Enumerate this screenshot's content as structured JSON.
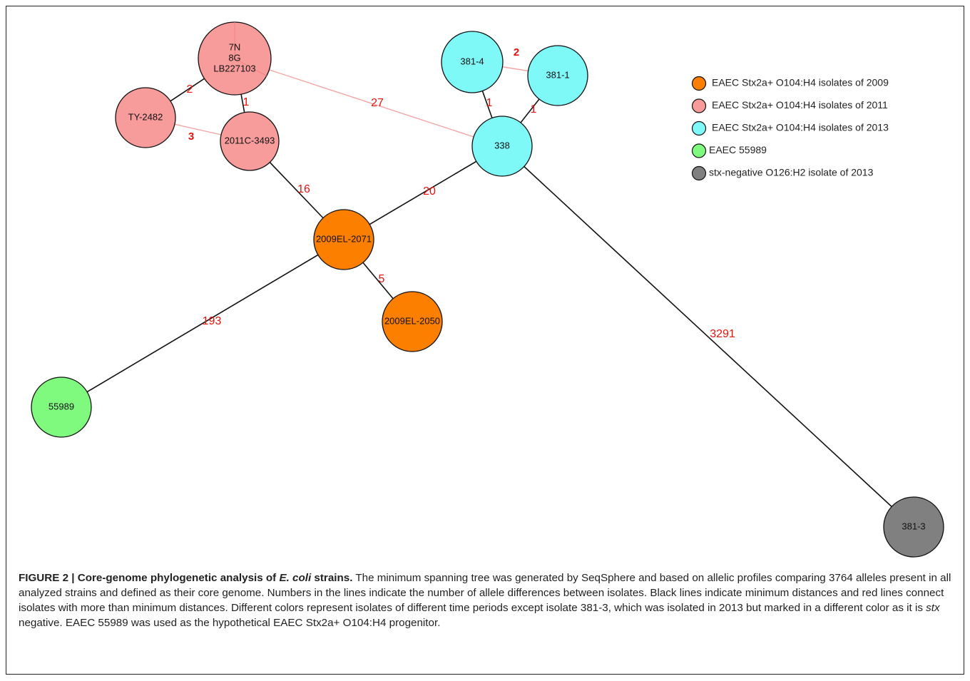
{
  "colors": {
    "y2009": "#fd7f00",
    "y2011": "#f89b9b",
    "y2013": "#7ff8f8",
    "strain55989": "#80f97f",
    "stxneg": "#808080",
    "edge_min": "#111111",
    "edge_other": "#f4a4a4",
    "edge_label": "#e8120c"
  },
  "nodes": [
    {
      "id": "lb227103",
      "lines": [
        "7N",
        "8G",
        "LB227103"
      ],
      "group": "y2011"
    },
    {
      "id": "ty2482",
      "lines": [
        "TY-2482"
      ],
      "group": "y2011"
    },
    {
      "id": "2011c3493",
      "lines": [
        "2011C-3493"
      ],
      "group": "y2011"
    },
    {
      "id": "381_4",
      "lines": [
        "381-4"
      ],
      "group": "y2013"
    },
    {
      "id": "381_1",
      "lines": [
        "381-1"
      ],
      "group": "y2013"
    },
    {
      "id": "338",
      "lines": [
        "338"
      ],
      "group": "y2013"
    },
    {
      "id": "2009el2071",
      "lines": [
        "2009EL-2071"
      ],
      "group": "y2009"
    },
    {
      "id": "2009el2050",
      "lines": [
        "2009EL-2050"
      ],
      "group": "y2009"
    },
    {
      "id": "55989",
      "lines": [
        "55989"
      ],
      "group": "strain55989"
    },
    {
      "id": "381_3",
      "lines": [
        "381-3"
      ],
      "group": "stxneg"
    }
  ],
  "edges": [
    {
      "from": "lb227103",
      "to": "ty2482",
      "label": "2",
      "type": "min",
      "bold": false
    },
    {
      "from": "lb227103",
      "to": "2011c3493",
      "label": "1",
      "type": "min",
      "bold": false
    },
    {
      "from": "ty2482",
      "to": "2011c3493",
      "label": "3",
      "type": "other",
      "bold": true
    },
    {
      "from": "lb227103",
      "to": "338",
      "label": "27",
      "type": "other",
      "bold": false
    },
    {
      "from": "381_4",
      "to": "381_1",
      "label": "2",
      "type": "other",
      "bold": true
    },
    {
      "from": "381_4",
      "to": "338",
      "label": "1",
      "type": "min",
      "bold": false
    },
    {
      "from": "381_1",
      "to": "338",
      "label": "1",
      "type": "min",
      "bold": false
    },
    {
      "from": "2011c3493",
      "to": "2009el2071",
      "label": "16",
      "type": "min",
      "bold": false
    },
    {
      "from": "338",
      "to": "2009el2071",
      "label": "20",
      "type": "min",
      "bold": false
    },
    {
      "from": "2009el2071",
      "to": "2009el2050",
      "label": "5",
      "type": "min",
      "bold": false
    },
    {
      "from": "2009el2071",
      "to": "55989",
      "label": "193",
      "type": "min",
      "bold": false
    },
    {
      "from": "338",
      "to": "381_3",
      "label": "3291",
      "type": "min",
      "bold": false
    }
  ],
  "legend": [
    {
      "group": "y2009",
      "label": "EAEC Stx2a+ O104:H4 isolates of 2009"
    },
    {
      "group": "y2011",
      "label": "EAEC Stx2a+ O104:H4 isolates of 2011"
    },
    {
      "group": "y2013",
      "label": "EAEC Stx2a+ O104:H4 isolates of 2013"
    },
    {
      "group": "strain55989",
      "label": "EAEC 55989"
    },
    {
      "group": "stxneg",
      "label": "stx-negative O126:H2 isolate of 2013"
    }
  ],
  "caption": {
    "lead": "FIGURE 2 | Core-genome phylogenetic analysis of ",
    "lead_italic": "E. coli",
    "lead_end": " strains.",
    "text1": " The minimum spanning tree was generated by SeqSphere and based on allelic profiles comparing 3764 alleles present in all analyzed strains and defined as their core genome. Numbers in the lines indicate the number of allele differences between isolates. Black lines indicate minimum distances and red lines connect isolates with more than minimum distances. Different colors represent isolates of different time periods except isolate 381-3, which was isolated in 2013 but marked in a different color as it is ",
    "text_italic": "stx",
    "text2": " negative. EAEC 55989 was used as the hypothetical EAEC Stx2a+ O104:H4 progenitor."
  }
}
